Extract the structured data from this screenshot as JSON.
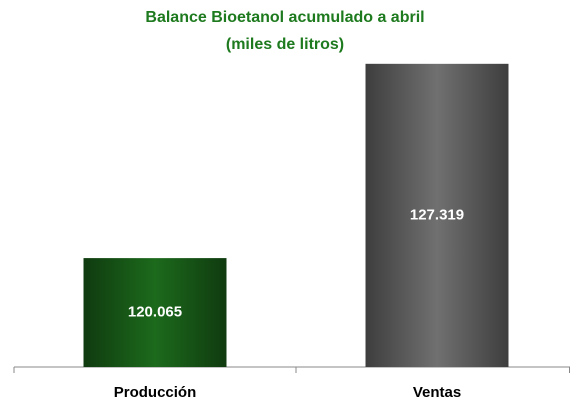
{
  "chart_data": {
    "type": "bar",
    "title": "Balance Bioetanol acumulado a abril",
    "subtitle": "(miles de litros)",
    "categories": [
      "Producción",
      "Ventas"
    ],
    "values": [
      120065,
      127319
    ],
    "value_labels": [
      "120.065",
      "127.319"
    ],
    "colors": [
      "#1c6a1c",
      "#707070"
    ],
    "ylim": [
      116000,
      127500
    ]
  }
}
